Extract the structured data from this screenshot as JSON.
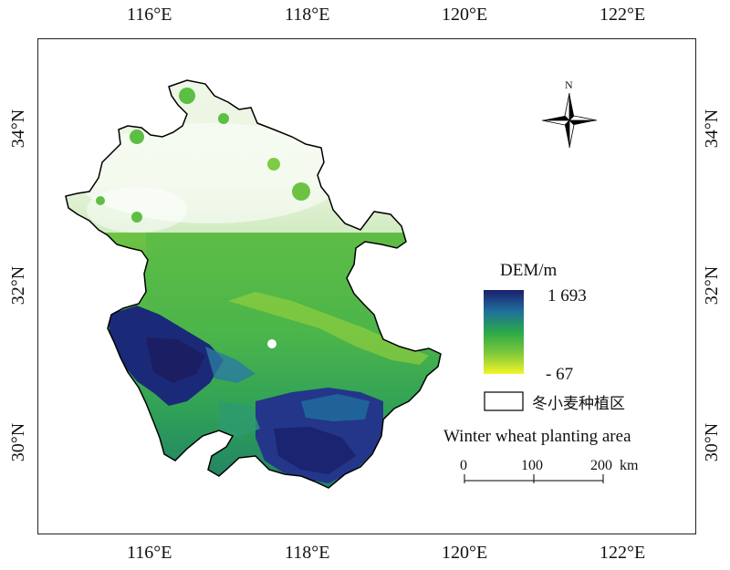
{
  "map": {
    "top_lon_labels": [
      "116°E",
      "118°E",
      "120°E",
      "122°E"
    ],
    "bottom_lon_labels": [
      "116°E",
      "118°E",
      "120°E",
      "122°E"
    ],
    "left_lat_labels": [
      "34°N",
      "32°N",
      "30°N"
    ],
    "right_lat_labels": [
      "34°N",
      "32°N",
      "30°N"
    ],
    "north_label": "N"
  },
  "legend": {
    "title": "DEM/m",
    "max_value": "1 693",
    "min_value": "- 67",
    "colors": {
      "high": "#1a2470",
      "mid_high": "#1f7fa0",
      "mid": "#3bb34a",
      "mid_low": "#8bd13a",
      "low": "#f0f020"
    },
    "planting_label_cn": "冬小麦种植区",
    "planting_label_en": "Winter wheat planting area"
  },
  "scalebar": {
    "ticks": [
      "0",
      "100",
      "200"
    ],
    "unit": "km"
  }
}
